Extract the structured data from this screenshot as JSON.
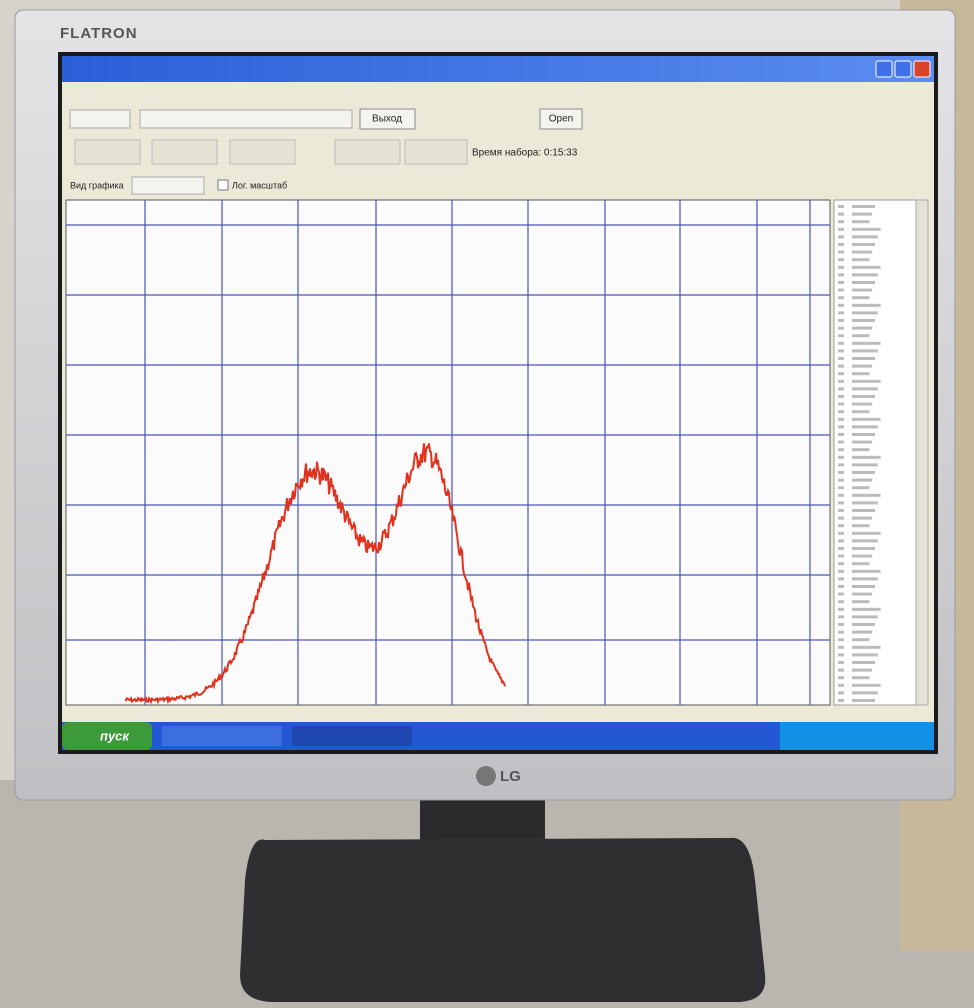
{
  "monitor": {
    "brand": "FLATRON",
    "logo": "LG"
  },
  "window": {
    "buttons": [
      "Выход",
      "Open"
    ],
    "timer": "Время набора: 0:15:33",
    "view_label": "Вид графика",
    "checkbox": "Лог. масштаб"
  },
  "taskbar": {
    "start": "пуск"
  }
}
